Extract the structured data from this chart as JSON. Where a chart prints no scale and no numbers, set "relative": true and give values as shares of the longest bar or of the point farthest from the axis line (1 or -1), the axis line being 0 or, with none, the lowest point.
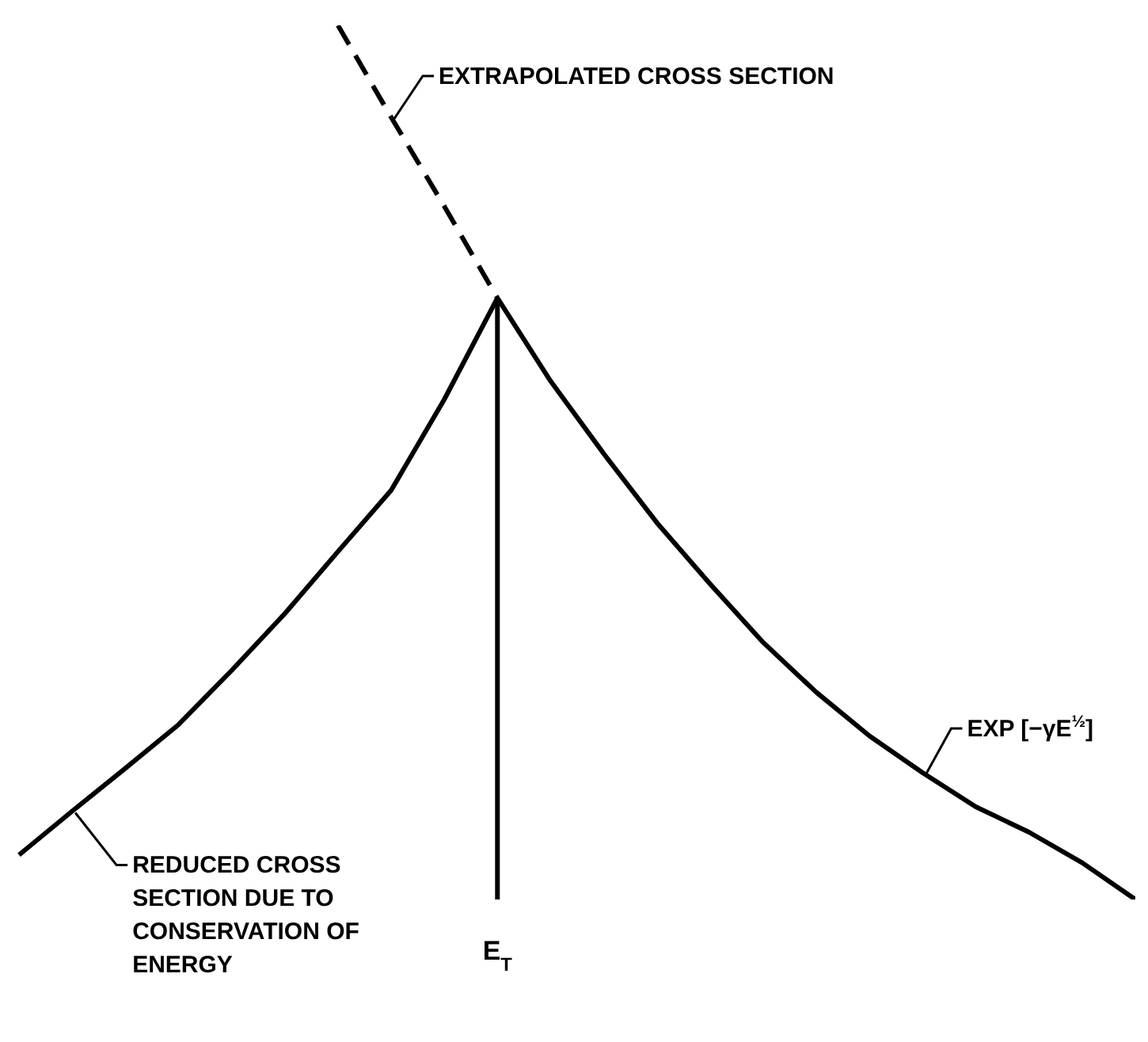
{
  "chart_data": {
    "type": "line",
    "relative": true,
    "marker": "none",
    "annotations": [
      "E$_{T}$"
    ],
    "categories": [
      null,
      null,
      null,
      null,
      null,
      null,
      null,
      null,
      null,
      null,
      null,
      null,
      null,
      null,
      null,
      null,
      null,
      null,
      null,
      null,
      null,
      null
    ],
    "series": [
      {
        "name": "EXTRAPOLATED CROSS SECTION",
        "color": "#000000",
        "line_style": "dashed",
        "values": [
          null,
          null,
          null,
          null,
          null,
          null,
          1,
          0.895,
          0.793,
          0.688,
          null,
          null,
          null,
          null,
          null,
          null,
          null,
          null,
          null,
          null,
          null,
          null
        ]
      },
      {
        "name": "REDUCED CROSS SECTION DUE TO CONSERVATION OF ENERGY",
        "color": "#000000",
        "line_style": "solid",
        "values": [
          0.051,
          0.101,
          0.15,
          0.2,
          0.262,
          0.327,
          0.398,
          0.468,
          0.572,
          0.688,
          null,
          null,
          null,
          null,
          null,
          null,
          null,
          null,
          null,
          null,
          null,
          null
        ]
      },
      {
        "name": "EXP [−γE$^{½}$]",
        "color": "#000000",
        "line_style": "solid",
        "values": [
          null,
          null,
          null,
          null,
          null,
          null,
          null,
          null,
          null,
          0.688,
          0.593,
          0.51,
          0.431,
          0.361,
          0.294,
          0.237,
          0.187,
          0.145,
          0.106,
          0.077,
          0.042,
          0
        ]
      }
    ]
  }
}
